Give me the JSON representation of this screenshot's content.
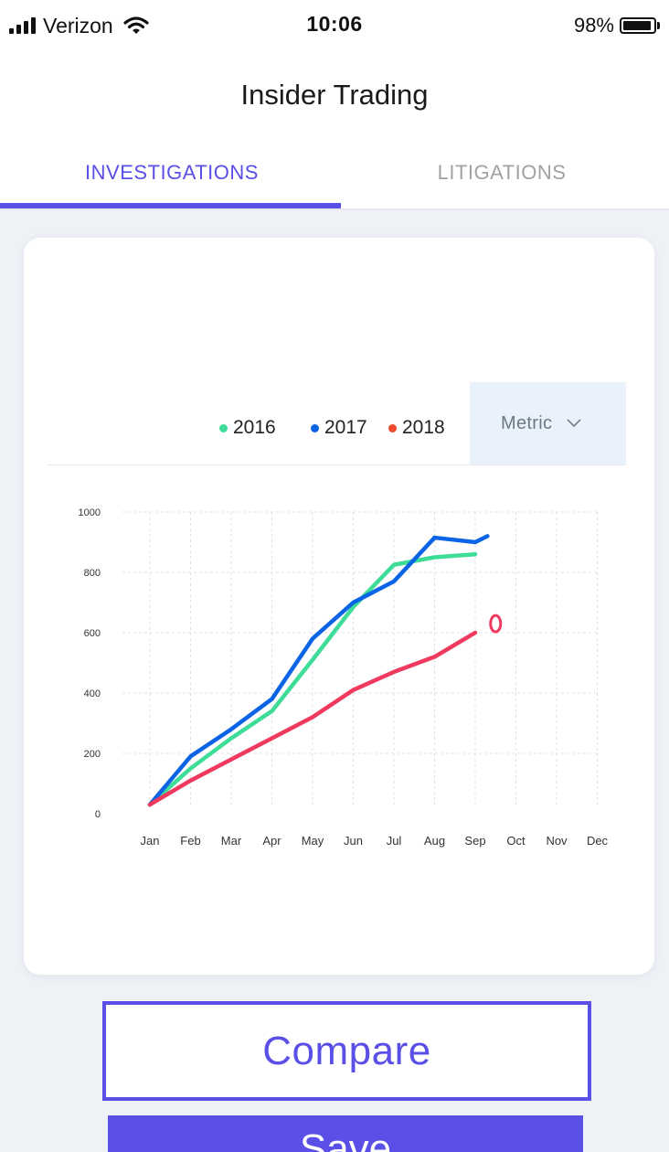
{
  "status_bar": {
    "carrier": "Verizon",
    "time": "10:06",
    "battery": "98%"
  },
  "header": {
    "title": "Insider Trading",
    "tabs": [
      {
        "label": "INVESTIGATIONS",
        "active": true
      },
      {
        "label": "LITIGATIONS",
        "active": false
      }
    ]
  },
  "filter": {
    "metric_label": "Metric"
  },
  "colors": {
    "accent": "#5a4fe6",
    "series_2016": "#3ddc97",
    "series_2017": "#0b63e6",
    "series_2018": "#f0395e"
  },
  "chart_data": {
    "type": "line",
    "categories": [
      "Jan",
      "Feb",
      "Mar",
      "Apr",
      "May",
      "Jun",
      "Jul",
      "Aug",
      "Sep",
      "Oct",
      "Nov",
      "Dec"
    ],
    "ylim": [
      0,
      1000
    ],
    "yticks": [
      0,
      200,
      400,
      600,
      800,
      1000
    ],
    "grid": true,
    "legend_position": "top",
    "series": [
      {
        "name": "2016",
        "color": "#3ddc97",
        "x": [
          0,
          1,
          2,
          3,
          4,
          5,
          6,
          7,
          8
        ],
        "values": [
          30,
          150,
          250,
          340,
          510,
          685,
          825,
          850,
          860
        ]
      },
      {
        "name": "2017",
        "color": "#0b63e6",
        "x": [
          0,
          1,
          2,
          3,
          4,
          5,
          6,
          7,
          8,
          8.3
        ],
        "values": [
          30,
          190,
          280,
          380,
          580,
          700,
          770,
          915,
          900,
          920
        ]
      },
      {
        "name": "2018",
        "color": "#f0395e",
        "x": [
          0,
          1,
          2,
          3,
          4,
          5,
          6,
          7,
          8
        ],
        "values": [
          30,
          110,
          180,
          250,
          320,
          410,
          470,
          520,
          600
        ]
      }
    ],
    "end_marker": {
      "series": "2018",
      "x": 8.5,
      "y": 630
    }
  },
  "actions": {
    "compare_label": "Compare",
    "save_label": "Save"
  }
}
